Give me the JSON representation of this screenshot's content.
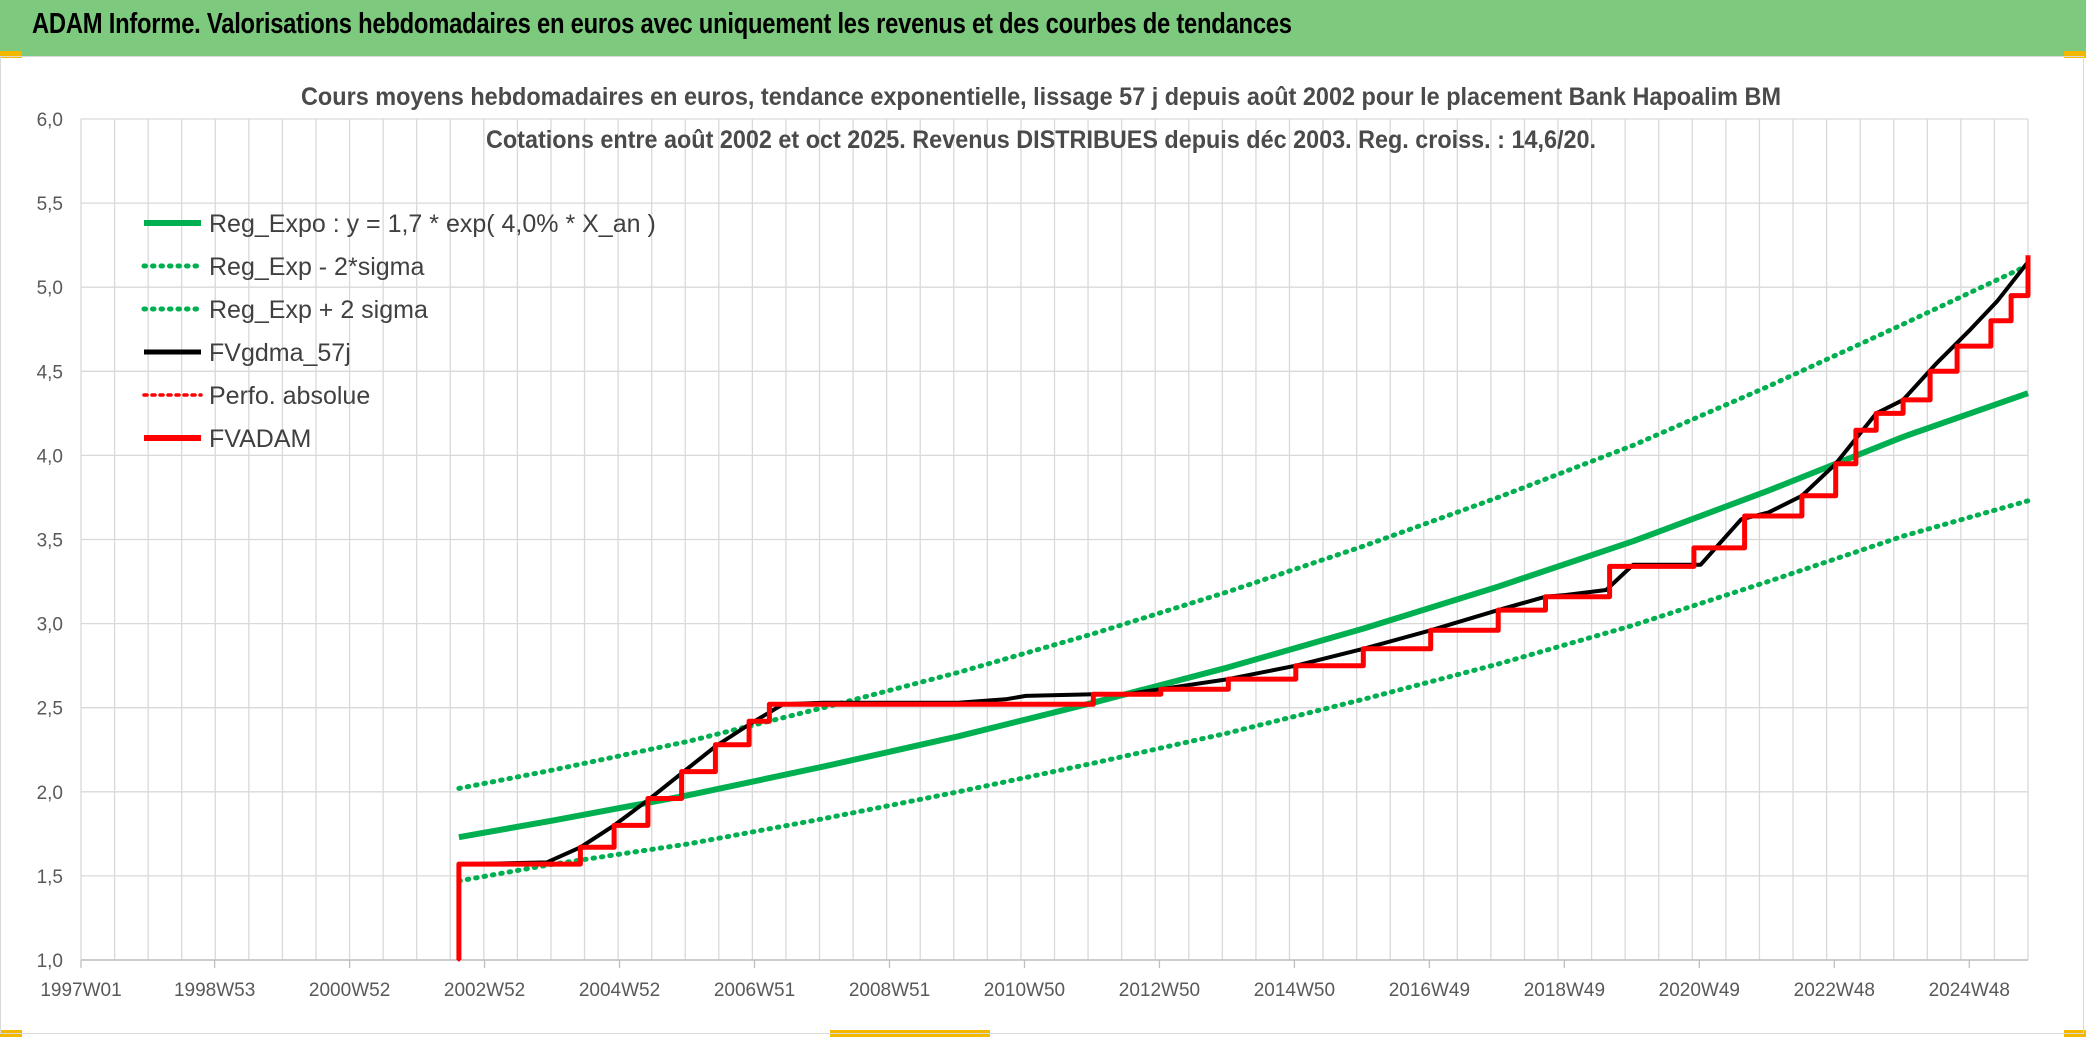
{
  "banner": {
    "title": "ADAM Informe. Valorisations hebdomadaires en euros avec uniquement les revenus et des courbes de tendances",
    "bg_color": "#7dc97d"
  },
  "chart_data": {
    "type": "line",
    "title": "Cours moyens hebdomadaires en euros, tendance exponentielle, lissage 57 j depuis août 2002 pour le placement Bank Hapoalim BM",
    "subtitle": "Cotations entre août 2002 et oct 2025. Revenus DISTRIBUES depuis déc 2003. Reg. croiss. : 14,6/20.",
    "xlabel": "",
    "ylabel": "",
    "x_tick_labels": [
      "1997W01",
      "1998W53",
      "2000W52",
      "2002W52",
      "2004W52",
      "2006W51",
      "2008W51",
      "2010W50",
      "2012W50",
      "2014W50",
      "2016W49",
      "2018W49",
      "2020W49",
      "2022W48",
      "2024W48"
    ],
    "xlim": [
      1997.0,
      2025.85
    ],
    "ylim": [
      1.0,
      6.0
    ],
    "y_ticks": [
      "1,0",
      "1,5",
      "2,0",
      "2,5",
      "3,0",
      "3,5",
      "4,0",
      "4,5",
      "5,0",
      "5,5",
      "6,0"
    ],
    "grid": true,
    "legend_position": "top-left",
    "series": [
      {
        "name": "Reg_Expo : y = 1,7 * exp( 4,0% *  X_an )",
        "color": "#00b050",
        "style": "solid",
        "x": [
          2002.6,
          2004.0,
          2006.0,
          2008.0,
          2010.0,
          2012.0,
          2014.0,
          2016.0,
          2018.0,
          2020.0,
          2022.0,
          2024.0,
          2025.85
        ],
        "y": [
          1.73,
          1.83,
          1.98,
          2.15,
          2.33,
          2.53,
          2.74,
          2.97,
          3.22,
          3.49,
          3.79,
          4.11,
          4.37
        ]
      },
      {
        "name": "Reg_Exp - 2*sigma",
        "color": "#00b050",
        "style": "dotted",
        "x": [
          2002.6,
          2004.0,
          2006.0,
          2008.0,
          2010.0,
          2012.0,
          2014.0,
          2016.0,
          2018.0,
          2020.0,
          2022.0,
          2024.0,
          2025.85
        ],
        "y": [
          1.47,
          1.57,
          1.69,
          1.84,
          2.0,
          2.17,
          2.35,
          2.55,
          2.76,
          2.99,
          3.25,
          3.52,
          3.73
        ]
      },
      {
        "name": "Reg_Exp + 2 sigma",
        "color": "#00b050",
        "style": "dotted",
        "x": [
          2002.6,
          2004.0,
          2006.0,
          2008.0,
          2010.0,
          2012.0,
          2014.0,
          2016.0,
          2018.0,
          2020.0,
          2022.0,
          2024.0,
          2025.85
        ],
        "y": [
          2.02,
          2.13,
          2.3,
          2.5,
          2.71,
          2.94,
          3.19,
          3.46,
          3.75,
          4.06,
          4.41,
          4.78,
          5.13
        ]
      },
      {
        "name": "FVgdma_57j",
        "color": "#000000",
        "style": "solid",
        "x": [
          2002.75,
          2003.9,
          2004.4,
          2004.9,
          2005.4,
          2005.9,
          2006.4,
          2006.9,
          2007.4,
          2008.0,
          2010.0,
          2010.7,
          2011.0,
          2012.0,
          2012.5,
          2013.0,
          2014.0,
          2015.0,
          2016.0,
          2017.0,
          2018.0,
          2018.7,
          2019.0,
          2019.6,
          2020.0,
          2021.0,
          2021.6,
          2022.0,
          2022.5,
          2023.0,
          2023.6,
          2024.0,
          2024.5,
          2025.0,
          2025.4,
          2025.85
        ],
        "y": [
          1.57,
          1.58,
          1.67,
          1.8,
          1.95,
          2.11,
          2.27,
          2.4,
          2.52,
          2.53,
          2.53,
          2.55,
          2.57,
          2.58,
          2.58,
          2.61,
          2.67,
          2.75,
          2.85,
          2.96,
          3.08,
          3.16,
          3.17,
          3.2,
          3.35,
          3.35,
          3.62,
          3.66,
          3.76,
          3.95,
          4.25,
          4.33,
          4.55,
          4.75,
          4.92,
          5.15
        ]
      },
      {
        "name": "Perfo. absolue",
        "color": "#ff0000",
        "style": "dotted",
        "x": [
          2002.6,
          2002.6,
          2003.9,
          2004.4,
          2004.9,
          2005.4,
          2005.9,
          2006.4,
          2006.9,
          2007.2,
          2010.8,
          2012.0,
          2012.6,
          2013.0,
          2014.0,
          2015.0,
          2016.0,
          2017.0,
          2018.0,
          2018.7,
          2019.6,
          2019.65,
          2020.85,
          2020.9,
          2021.6,
          2021.65,
          2022.1,
          2022.5,
          2023.0,
          2023.3,
          2023.6,
          2024.0,
          2024.4,
          2024.8,
          2025.3,
          2025.6,
          2025.85
        ],
        "y": [
          1.0,
          1.57,
          1.57,
          1.67,
          1.8,
          1.96,
          2.12,
          2.28,
          2.42,
          2.52,
          2.52,
          2.58,
          2.58,
          2.61,
          2.67,
          2.75,
          2.85,
          2.96,
          3.08,
          3.16,
          3.16,
          3.34,
          3.34,
          3.45,
          3.45,
          3.64,
          3.64,
          3.76,
          3.95,
          4.15,
          4.25,
          4.33,
          4.5,
          4.65,
          4.8,
          4.95,
          5.19
        ]
      },
      {
        "name": "FVADAM",
        "color": "#ff0000",
        "style": "solid",
        "x": [
          2002.6,
          2002.6,
          2003.9,
          2004.4,
          2004.9,
          2005.4,
          2005.9,
          2006.4,
          2006.9,
          2007.2,
          2010.8,
          2012.0,
          2012.6,
          2013.0,
          2014.0,
          2015.0,
          2016.0,
          2017.0,
          2018.0,
          2018.7,
          2019.6,
          2019.65,
          2020.85,
          2020.9,
          2021.6,
          2021.65,
          2022.1,
          2022.5,
          2023.0,
          2023.3,
          2023.6,
          2024.0,
          2024.4,
          2024.8,
          2025.3,
          2025.6,
          2025.85
        ],
        "y": [
          1.0,
          1.57,
          1.57,
          1.67,
          1.8,
          1.96,
          2.12,
          2.28,
          2.42,
          2.52,
          2.52,
          2.58,
          2.58,
          2.61,
          2.67,
          2.75,
          2.85,
          2.96,
          3.08,
          3.16,
          3.16,
          3.34,
          3.34,
          3.45,
          3.45,
          3.64,
          3.64,
          3.76,
          3.95,
          4.15,
          4.25,
          4.33,
          4.5,
          4.65,
          4.8,
          4.95,
          5.19
        ]
      }
    ],
    "step_series": [
      "Perfo. absolue",
      "FVADAM"
    ]
  }
}
